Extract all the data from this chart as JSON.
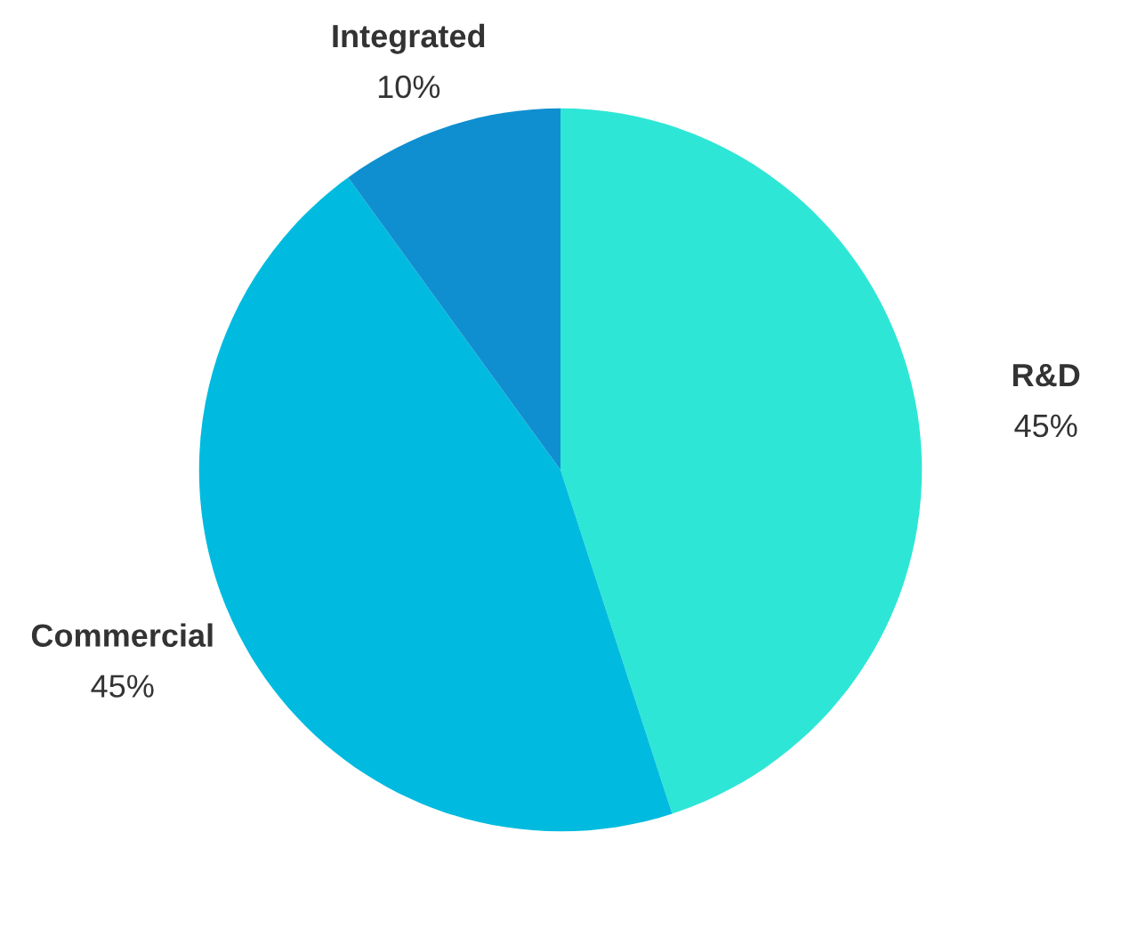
{
  "chart_data": {
    "type": "pie",
    "categories": [
      "R&D",
      "Commercial",
      "Integrated"
    ],
    "values": [
      45,
      45,
      10
    ],
    "value_labels": [
      "45%",
      "45%",
      "10%"
    ],
    "colors": [
      "#2ee6d6",
      "#00bbdf",
      "#0f8fd0"
    ]
  }
}
